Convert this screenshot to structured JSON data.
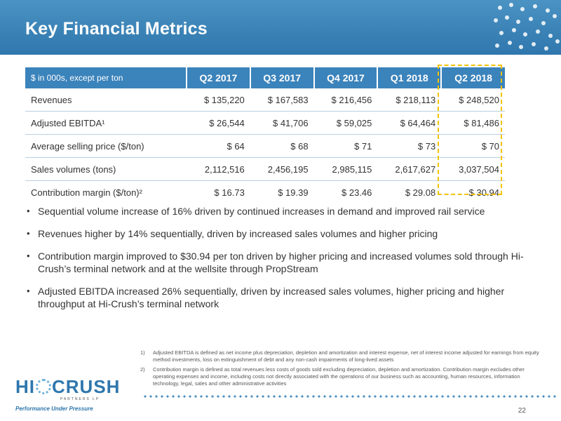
{
  "header": {
    "title": "Key Financial Metrics"
  },
  "table": {
    "corner_label": "$ in 000s, except per ton",
    "columns": [
      "Q2 2017",
      "Q3 2017",
      "Q4 2017",
      "Q1 2018",
      "Q2 2018"
    ],
    "rows": [
      {
        "label": "Revenues",
        "values": [
          "$ 135,220",
          "$ 167,583",
          "$ 216,456",
          "$ 218,113",
          "$ 248,520"
        ]
      },
      {
        "label": "Adjusted EBITDA¹",
        "values": [
          "$ 26,544",
          "$ 41,706",
          "$ 59,025",
          "$ 64,464",
          "$ 81,486"
        ]
      },
      {
        "label": "Average selling price ($/ton)",
        "values": [
          "$ 64",
          "$ 68",
          "$ 71",
          "$ 73",
          "$ 70"
        ]
      },
      {
        "label": "Sales volumes (tons)",
        "values": [
          "2,112,516",
          "2,456,195",
          "2,985,115",
          "2,617,627",
          "3,037,504"
        ]
      },
      {
        "label": "Contribution margin ($/ton)²",
        "values": [
          "$ 16.73",
          "$ 19.39",
          "$ 23.46",
          "$ 29.08",
          "$ 30.94"
        ]
      }
    ]
  },
  "bullets": [
    "Sequential volume increase of 16% driven by continued increases in demand and improved rail service",
    "Revenues higher by 14% sequentially, driven by increased sales volumes and higher pricing",
    "Contribution margin improved to $30.94 per ton driven by higher pricing and increased volumes sold through Hi-Crush’s terminal network and at the wellsite through PropStream",
    "Adjusted EBITDA increased 26% sequentially, driven by increased sales volumes, higher pricing and higher throughput at Hi-Crush’s terminal network"
  ],
  "footnotes": [
    {
      "num": "1)",
      "text": "Adjusted EBITDA is defined as net income plus depreciation, depletion and amortization and interest expense, net of interest income adjusted for earnings from equity method investments, loss on extinguishment of debt and any non-cash impairments of long-lived assets"
    },
    {
      "num": "2)",
      "text": "Contribution margin is defined as total revenues less costs of goods sold excluding depreciation, depletion and amortization. Contribution margin excludes other operating expenses and income, including costs not directly associated with the operations of our business such as accounting, human resources, information technology, legal, sales and other administrative activities"
    }
  ],
  "logo": {
    "left": "HI",
    "right": "CRUSH",
    "partners": "PARTNERS LP",
    "tagline": "Performance Under Pressure"
  },
  "page_number": "22",
  "colors": {
    "header_blue": "#2f77ad",
    "table_header_blue": "#3b83bb",
    "highlight_yellow": "#f2c200"
  }
}
